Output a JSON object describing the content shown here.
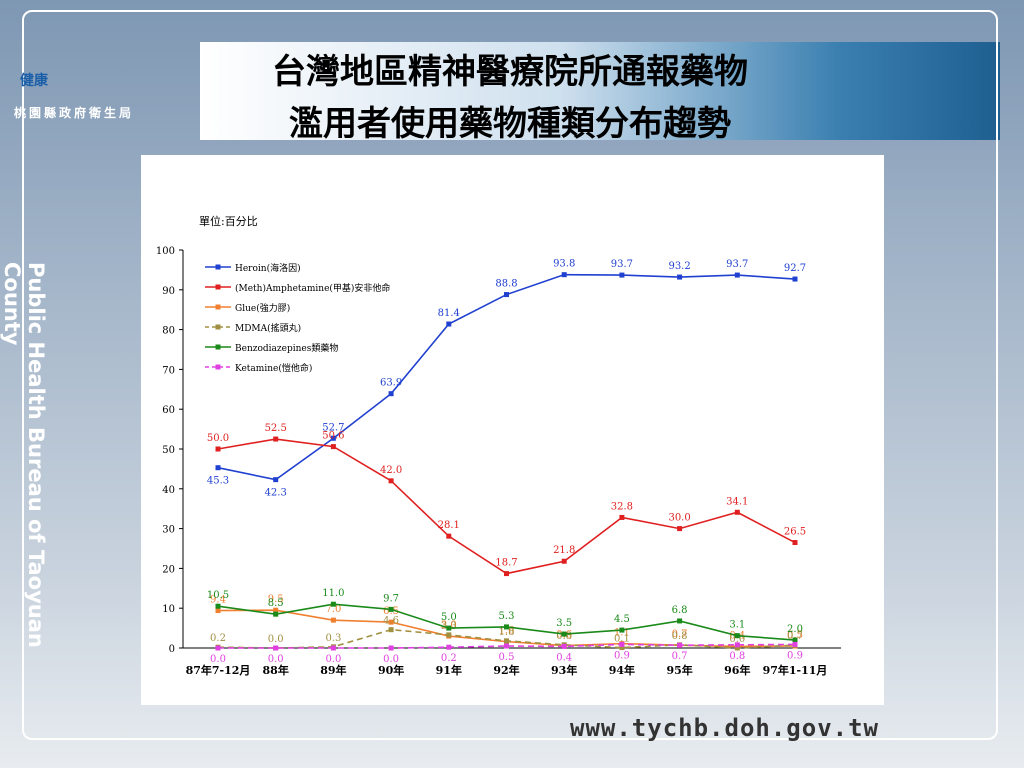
{
  "header": {
    "logo_text": "健康",
    "org": "桃園縣政府衛生局",
    "title_lines": [
      "台灣地區精神醫療院所通報藥物",
      "濫用者使用藥物種類分布趨勢"
    ],
    "side_text": "Public Health Bureau of Taoyuan County",
    "url": "www.tychb.doh.gov.tw"
  },
  "chart_data": {
    "type": "line",
    "unit_label": "單位:百分比",
    "categories": [
      "87年7-12月",
      "88年",
      "89年",
      "90年",
      "91年",
      "92年",
      "93年",
      "94年",
      "95年",
      "96年",
      "97年1-11月"
    ],
    "ylim": [
      0,
      100
    ],
    "yticks": [
      0,
      10,
      20,
      30,
      40,
      50,
      60,
      70,
      80,
      90,
      100
    ],
    "legend": "upper-left",
    "series": [
      {
        "name": "Heroin(海洛因)",
        "color": "#2040d0",
        "dash": false,
        "values": [
          45.3,
          42.3,
          52.7,
          63.9,
          81.4,
          88.8,
          93.8,
          93.7,
          93.2,
          93.7,
          92.7
        ],
        "value_labels": [
          "45.3",
          "42.3",
          "52.7",
          "63.9",
          "81.4",
          "88.8",
          "93.8",
          "93.7",
          "93.2",
          "93.7",
          "92.7"
        ]
      },
      {
        "name": "(Meth)Amphetamine(甲基)安非他命",
        "color": "#e02020",
        "dash": false,
        "values": [
          50.0,
          52.5,
          50.6,
          42.0,
          28.1,
          18.7,
          21.8,
          32.8,
          30.0,
          34.1,
          26.5
        ],
        "value_labels": [
          "50.0",
          "52.5",
          "50.6",
          "42.0",
          "28.1",
          "18.7",
          "21.8",
          "32.8",
          "30.0",
          "34.1",
          "26.5"
        ]
      },
      {
        "name": "Glue(強力膠)",
        "color": "#f08030",
        "dash": false,
        "values": [
          9.4,
          9.5,
          7.0,
          6.5,
          3.0,
          1.6,
          0.6,
          1.1,
          0.7,
          0.4,
          0.5
        ],
        "value_labels": [
          "9.4",
          "9.5",
          "7.0",
          "6.5",
          "3.0",
          "1.6",
          "0.6",
          "1.1",
          "0.7",
          "0.4",
          "0.5"
        ]
      },
      {
        "name": "MDMA(搖頭丸)",
        "color": "#a09040",
        "dash": true,
        "values": [
          0.2,
          0.0,
          0.3,
          4.6,
          3.3,
          1.8,
          0.8,
          0.1,
          0.8,
          0.0,
          0.7
        ],
        "value_labels": [
          "0.2",
          "0.0",
          "0.3",
          "4.6",
          "3.3",
          "1.8",
          "0.8",
          "0.1",
          "0.8",
          "0.0",
          "0.7"
        ]
      },
      {
        "name": "Benzodiazepines類藥物",
        "color": "#1a8a1a",
        "dash": false,
        "values": [
          10.5,
          8.5,
          11.0,
          9.7,
          5.0,
          5.3,
          3.5,
          4.5,
          6.8,
          3.1,
          2.0
        ],
        "value_labels": [
          "10.5",
          "8.5",
          "11.0",
          "9.7",
          "5.0",
          "5.3",
          "3.5",
          "4.5",
          "6.8",
          "3.1",
          "2.0"
        ]
      },
      {
        "name": "Ketamine(愷他命)",
        "color": "#e040e0",
        "dash": true,
        "values": [
          0.0,
          0.0,
          0.0,
          0.0,
          0.2,
          0.5,
          0.4,
          0.9,
          0.7,
          0.8,
          0.9
        ],
        "value_labels": [
          "0.0",
          "0.0",
          "0.0",
          "0.0",
          "0.2",
          "0.5",
          "0.4",
          "0.9",
          "0.7",
          "0.8",
          "0.9"
        ]
      }
    ]
  }
}
